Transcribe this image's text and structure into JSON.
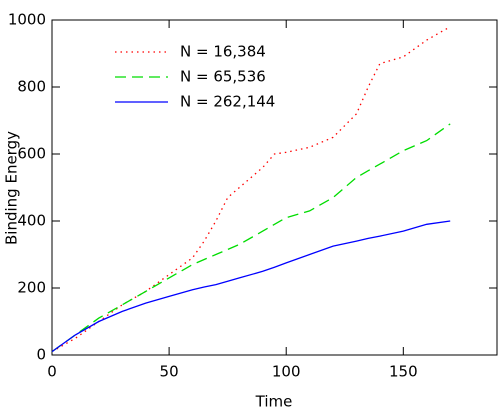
{
  "chart_data": {
    "type": "line",
    "x_label": "Time",
    "y_label": "Binding Energy",
    "x": [
      0,
      10,
      20,
      30,
      40,
      50,
      60,
      65,
      70,
      75,
      80,
      90,
      95,
      100,
      110,
      120,
      130,
      135,
      140,
      150,
      160,
      170
    ],
    "series": [
      {
        "name": "N = 16,384",
        "color": "#ff0000",
        "style": "dotted",
        "values": [
          10,
          50,
          100,
          150,
          190,
          240,
          290,
          340,
          400,
          470,
          500,
          560,
          600,
          605,
          620,
          650,
          720,
          800,
          870,
          890,
          940,
          980
        ]
      },
      {
        "name": "N = 65,536",
        "color": "#00dd00",
        "style": "dashed",
        "values": [
          10,
          60,
          110,
          150,
          190,
          230,
          270,
          285,
          300,
          315,
          330,
          370,
          390,
          410,
          430,
          470,
          530,
          550,
          570,
          610,
          640,
          690
        ]
      },
      {
        "name": "N = 262,144",
        "color": "#0000ff",
        "style": "solid",
        "values": [
          10,
          60,
          100,
          130,
          155,
          175,
          195,
          203,
          210,
          220,
          230,
          250,
          262,
          275,
          300,
          325,
          340,
          348,
          355,
          370,
          390,
          400
        ]
      }
    ],
    "xlim": [
      0,
      190
    ],
    "xticks": [
      0,
      50,
      100,
      150
    ],
    "ylim": [
      0,
      1000
    ],
    "yticks": [
      0,
      200,
      400,
      600,
      800,
      1000
    ],
    "grid": false,
    "legend": "upper left"
  }
}
